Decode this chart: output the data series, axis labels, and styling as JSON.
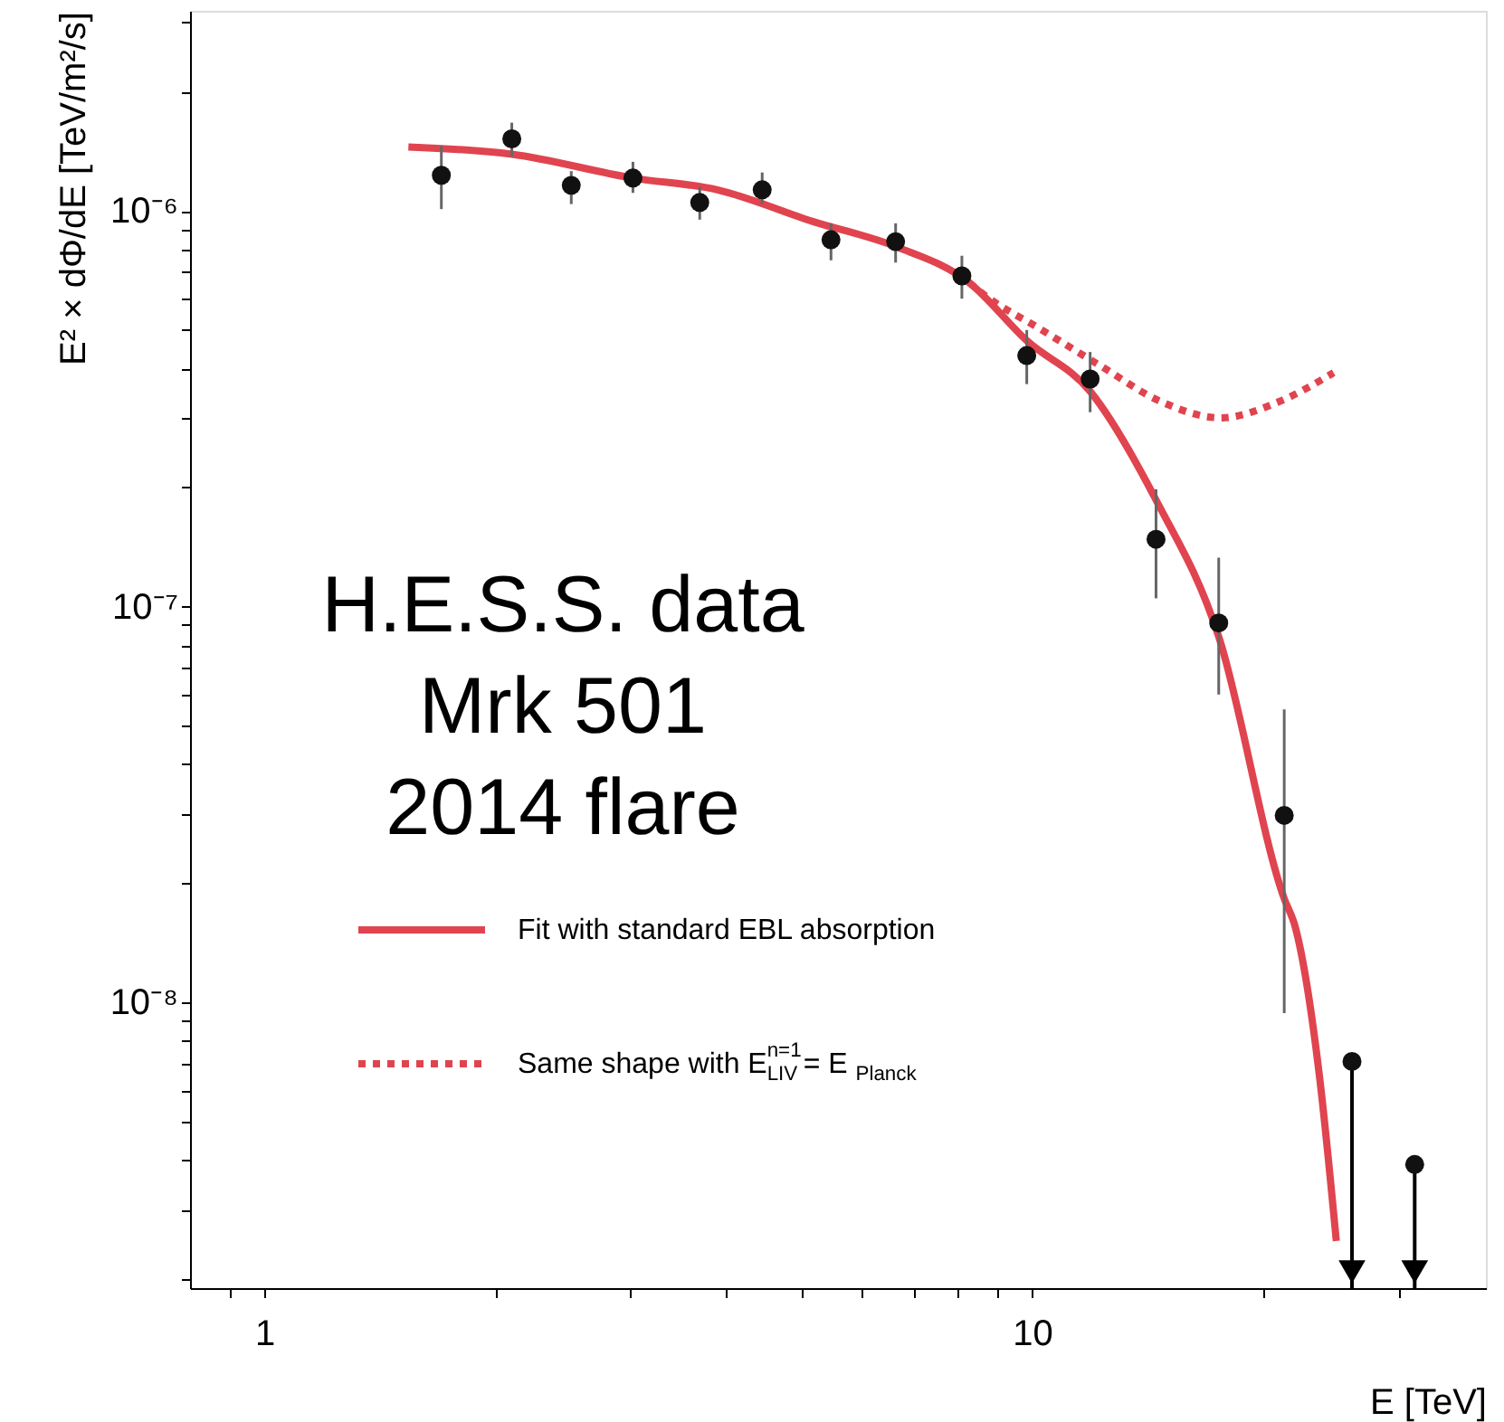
{
  "chart_data": {
    "type": "scatter",
    "xlabel": "E [TeV]",
    "ylabel": "E² × dΦ/dE [TeV/m²/s]",
    "xlim": [
      0.8,
      39
    ],
    "ylim": [
      1.9e-09,
      3.2e-06
    ],
    "log": "xy",
    "grid": false,
    "legend": "bottom left",
    "marker": "circle",
    "xticks": [
      {
        "value": 0.9,
        "label": null
      },
      1,
      {
        "value": 2,
        "label": null
      },
      {
        "value": 3,
        "label": null
      },
      {
        "value": 4,
        "label": null
      },
      {
        "value": 5,
        "label": null
      },
      {
        "value": 6,
        "label": null
      },
      {
        "value": 7,
        "label": null
      },
      {
        "value": 8,
        "label": null
      },
      {
        "value": 9,
        "label": null
      },
      10,
      {
        "value": 20,
        "label": null
      },
      {
        "value": 30,
        "label": null
      }
    ],
    "yticks": [
      {
        "value": 2e-09,
        "label": null
      },
      {
        "value": 3e-09,
        "label": null
      },
      {
        "value": 4e-09,
        "label": null
      },
      {
        "value": 5e-09,
        "label": null
      },
      {
        "value": 6e-09,
        "label": null
      },
      {
        "value": 7e-09,
        "label": null
      },
      {
        "value": 8e-09,
        "label": null
      },
      {
        "value": 9e-09,
        "label": null
      },
      {
        "value": 1e-08,
        "label": "10⁻⁸"
      },
      {
        "value": 2e-08,
        "label": null
      },
      {
        "value": 3e-08,
        "label": null
      },
      {
        "value": 4e-08,
        "label": null
      },
      {
        "value": 5e-08,
        "label": null
      },
      {
        "value": 6e-08,
        "label": null
      },
      {
        "value": 7e-08,
        "label": null
      },
      {
        "value": 8e-08,
        "label": null
      },
      {
        "value": 9e-08,
        "label": null
      },
      {
        "value": 1e-07,
        "label": "10⁻⁷"
      },
      {
        "value": 2e-07,
        "label": null
      },
      {
        "value": 3e-07,
        "label": null
      },
      {
        "value": 4e-07,
        "label": null
      },
      {
        "value": 5e-07,
        "label": null
      },
      {
        "value": 6e-07,
        "label": null
      },
      {
        "value": 7e-07,
        "label": null
      },
      {
        "value": 8e-07,
        "label": null
      },
      {
        "value": 9e-07,
        "label": null
      },
      {
        "value": 1e-06,
        "label": "10⁻⁶"
      },
      {
        "value": 2e-06,
        "label": null
      },
      {
        "value": 3e-06,
        "label": null
      }
    ],
    "annotations": [
      "H.E.S.S. data\nMrk 501\n2014 flare"
    ],
    "series": [
      {
        "type": "line",
        "name": "Fit with standard EBL absorption",
        "color": "#e0444f",
        "line_style": "solid",
        "marker": "none",
        "x": [
          1.54,
          2.1,
          3.02,
          3.89,
          5.18,
          6.67,
          8.27,
          9.84,
          11.9,
          14.5,
          17.5,
          21.3,
          22.0,
          23.7,
          24.9
        ],
        "values": [
          1.45e-06,
          1.39e-06,
          1.21e-06,
          1.13e-06,
          9.4e-07,
          8.1e-07,
          6.6e-07,
          4.7e-07,
          3.5e-07,
          1.86e-07,
          8.4e-08,
          1.83e-08,
          1.56e-08,
          6.4e-09,
          2.5e-09
        ]
      },
      {
        "type": "line",
        "name": "Same shape with E$^{n=1}$$_{LIV}$ = E$_{Planck}$",
        "color": "#e0444f",
        "line_style": "dotted",
        "marker": "none",
        "x": [
          8.27,
          8.6,
          10.3,
          12.3,
          14.7,
          17.6,
          21.0,
          24.7
        ],
        "values": [
          6.6e-07,
          6.2e-07,
          5e-07,
          4.05e-07,
          3.3e-07,
          3e-07,
          3.3e-07,
          3.9e-07
        ]
      },
      {
        "color": "#111111",
        "x": [
          1.7,
          2.1,
          2.51,
          3.02,
          3.69,
          4.45,
          5.47,
          6.64,
          8.1,
          9.84,
          11.9,
          14.5,
          17.5,
          21.3
        ],
        "values": [
          1.23e-06,
          1.52e-06,
          1.16e-06,
          1.21e-06,
          1.05e-06,
          1.13e-06,
          8.45e-07,
          8.36e-07,
          6.85e-07,
          4.31e-07,
          3.76e-07,
          1.48e-07,
          9.1e-08,
          2.97e-08
        ],
        "errors": [
          [
            1.01e-06,
            1.46e-06
          ],
          [
            1.37e-06,
            1.67e-06
          ],
          [
            1.04e-06,
            1.26e-06
          ],
          [
            1.11e-06,
            1.33e-06
          ],
          [
            9.5e-07,
            1.15e-06
          ],
          [
            1.04e-06,
            1.25e-06
          ],
          [
            7.5e-07,
            9.3e-07
          ],
          [
            7.4e-07,
            9.3e-07
          ],
          [
            6e-07,
            7.7e-07
          ],
          [
            3.65e-07,
            5e-07
          ],
          [
            3.1e-07,
            4.4e-07
          ],
          [
            1.05e-07,
            1.98e-07
          ],
          [
            6e-08,
            1.33e-07
          ],
          [
            9.4e-09,
            5.5e-08
          ]
        ]
      },
      {
        "color": "#111111",
        "x": [
          26.1,
          31.5
        ],
        "values": [
          7.1e-09,
          3.9e-09
        ],
        "errors": [
          [
            1.9e-09,
            7.1e-09
          ],
          [
            1.9e-09,
            3.9e-09
          ]
        ]
      }
    ]
  }
}
